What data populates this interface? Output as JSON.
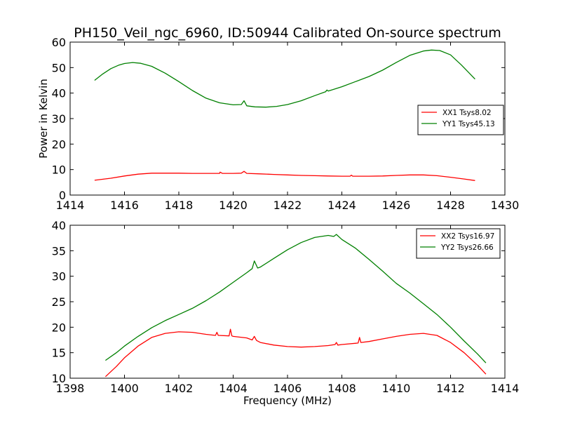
{
  "figure": {
    "title": "PH150_Veil_ngc_6960, ID:50944 Calibrated On-source spectrum"
  },
  "chart_data": [
    {
      "type": "line",
      "title": "PH150_Veil_ngc_6960, ID:50944 Calibrated On-source spectrum",
      "xlabel": "",
      "ylabel": "Power in Kelvin",
      "xlim": [
        1414,
        1430
      ],
      "ylim": [
        0,
        60
      ],
      "xticks": [
        1414,
        1416,
        1418,
        1420,
        1422,
        1424,
        1426,
        1428,
        1430
      ],
      "yticks": [
        0,
        10,
        20,
        30,
        40,
        50,
        60
      ],
      "grid": false,
      "legend": "center-right",
      "series": [
        {
          "name": "XX1 Tsys8.02",
          "color": "#ff0000",
          "x": [
            1414.9,
            1415.5,
            1416.0,
            1416.5,
            1417.0,
            1417.5,
            1418.0,
            1418.5,
            1419.0,
            1419.5,
            1419.52,
            1419.6,
            1420.0,
            1420.3,
            1420.4,
            1420.5,
            1421.0,
            1421.5,
            1422.0,
            1422.5,
            1423.0,
            1423.5,
            1424.0,
            1424.3,
            1424.35,
            1424.4,
            1424.5,
            1425.0,
            1425.5,
            1426.0,
            1426.5,
            1427.0,
            1427.5,
            1428.0,
            1428.5,
            1428.9
          ],
          "y": [
            5.8,
            6.6,
            7.5,
            8.2,
            8.6,
            8.6,
            8.6,
            8.5,
            8.5,
            8.5,
            9.0,
            8.5,
            8.5,
            8.6,
            9.3,
            8.5,
            8.3,
            8.1,
            7.9,
            7.7,
            7.6,
            7.5,
            7.4,
            7.4,
            7.8,
            7.4,
            7.4,
            7.4,
            7.5,
            7.7,
            7.9,
            7.9,
            7.6,
            7.0,
            6.3,
            5.7
          ]
        },
        {
          "name": "YY1 Tsys45.13",
          "color": "#008000",
          "x": [
            1414.9,
            1415.2,
            1415.5,
            1415.8,
            1416.0,
            1416.3,
            1416.6,
            1417.0,
            1417.5,
            1418.0,
            1418.5,
            1419.0,
            1419.5,
            1420.0,
            1420.3,
            1420.4,
            1420.5,
            1420.8,
            1421.2,
            1421.6,
            1422.0,
            1422.5,
            1423.0,
            1423.4,
            1423.45,
            1423.5,
            1424.0,
            1424.5,
            1425.0,
            1425.5,
            1426.0,
            1426.5,
            1427.0,
            1427.3,
            1427.6,
            1428.0,
            1428.4,
            1428.9
          ],
          "y": [
            45.0,
            47.5,
            49.6,
            51.0,
            51.6,
            52.0,
            51.7,
            50.5,
            47.8,
            44.5,
            41.0,
            38.0,
            36.2,
            35.4,
            35.5,
            37.0,
            35.0,
            34.6,
            34.5,
            34.8,
            35.5,
            37.0,
            39.0,
            40.5,
            41.2,
            40.8,
            42.5,
            44.5,
            46.5,
            49.0,
            52.0,
            54.8,
            56.5,
            56.9,
            56.7,
            55.0,
            51.0,
            45.5
          ]
        }
      ]
    },
    {
      "type": "line",
      "title": "",
      "xlabel": "Frequency (MHz)",
      "ylabel": "",
      "xlim": [
        1398,
        1414
      ],
      "ylim": [
        10,
        40
      ],
      "xticks": [
        1398,
        1400,
        1402,
        1404,
        1406,
        1408,
        1410,
        1412,
        1414
      ],
      "yticks": [
        10,
        15,
        20,
        25,
        30,
        35,
        40
      ],
      "grid": false,
      "legend": "top-right",
      "series": [
        {
          "name": "XX2 Tsys16.97",
          "color": "#ff0000",
          "x": [
            1399.3,
            1399.7,
            1400.0,
            1400.5,
            1401.0,
            1401.5,
            1402.0,
            1402.5,
            1403.0,
            1403.35,
            1403.4,
            1403.45,
            1403.85,
            1403.9,
            1403.95,
            1404.0,
            1404.5,
            1404.7,
            1404.78,
            1404.86,
            1405.0,
            1405.5,
            1406.0,
            1406.5,
            1407.0,
            1407.5,
            1407.75,
            1407.8,
            1407.85,
            1408.0,
            1408.6,
            1408.65,
            1408.7,
            1409.0,
            1409.5,
            1410.0,
            1410.5,
            1411.0,
            1411.5,
            1412.0,
            1412.5,
            1413.0,
            1413.3
          ],
          "y": [
            10.3,
            12.3,
            14.0,
            16.3,
            18.0,
            18.8,
            19.1,
            19.0,
            18.6,
            18.4,
            19.0,
            18.4,
            18.3,
            19.6,
            18.3,
            18.2,
            17.9,
            17.5,
            18.2,
            17.4,
            17.0,
            16.5,
            16.2,
            16.1,
            16.2,
            16.4,
            16.6,
            17.0,
            16.5,
            16.6,
            16.9,
            18.0,
            17.0,
            17.2,
            17.7,
            18.2,
            18.6,
            18.8,
            18.4,
            17.0,
            15.0,
            12.5,
            10.8
          ]
        },
        {
          "name": "YY2 Tsys26.66",
          "color": "#008000",
          "x": [
            1399.3,
            1399.7,
            1400.0,
            1400.5,
            1401.0,
            1401.5,
            1402.0,
            1402.5,
            1403.0,
            1403.5,
            1404.0,
            1404.5,
            1404.7,
            1404.78,
            1404.9,
            1405.0,
            1405.5,
            1406.0,
            1406.5,
            1407.0,
            1407.5,
            1407.7,
            1407.8,
            1408.0,
            1408.5,
            1409.0,
            1409.5,
            1410.0,
            1410.5,
            1411.0,
            1411.5,
            1412.0,
            1412.5,
            1413.0,
            1413.3
          ],
          "y": [
            13.5,
            15.0,
            16.3,
            18.2,
            19.9,
            21.3,
            22.5,
            23.7,
            25.2,
            26.9,
            28.8,
            30.7,
            31.5,
            33.0,
            31.6,
            31.8,
            33.5,
            35.2,
            36.6,
            37.6,
            38.0,
            37.8,
            38.2,
            37.2,
            35.5,
            33.3,
            31.0,
            28.6,
            26.7,
            24.6,
            22.5,
            20.0,
            17.3,
            14.7,
            13.0
          ]
        }
      ]
    }
  ]
}
